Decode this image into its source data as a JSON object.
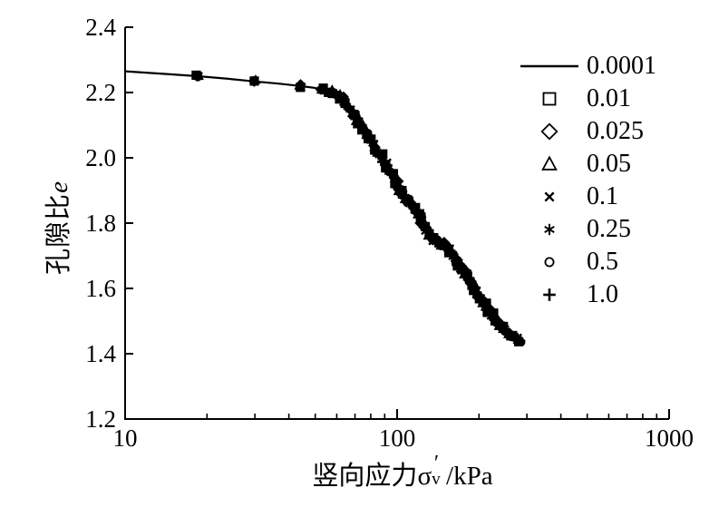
{
  "figure": {
    "background_color": "#ffffff",
    "foreground_color": "#000000"
  },
  "chart_data": {
    "type": "line+scatter",
    "title": "",
    "xlabel_prefix": "竖向应力",
    "xlabel_sigma": "σ",
    "xlabel_prime": "′",
    "xlabel_sub": "v",
    "xlabel_unit": "/kPa",
    "ylabel_cn": "孔隙比",
    "ylabel_var": "e",
    "x_scale": "log",
    "xlim": [
      10,
      1000
    ],
    "ylim": [
      1.2,
      2.4
    ],
    "x_tick_labels": [
      "10",
      "100",
      "1000"
    ],
    "x_tick_values": [
      10,
      100,
      1000
    ],
    "x_minor_ticks": [
      20,
      30,
      40,
      50,
      60,
      70,
      80,
      90,
      200,
      300,
      400,
      500,
      600,
      700,
      800,
      900
    ],
    "y_tick_labels": [
      "2.4",
      "2.2",
      "2.0",
      "1.8",
      "1.6",
      "1.4",
      "1.2"
    ],
    "y_tick_values": [
      2.4,
      2.2,
      2.0,
      1.8,
      1.6,
      1.4,
      1.2
    ],
    "grid": false,
    "legend_position": "upper-right-inside",
    "legend": [
      {
        "label": "0.0001",
        "marker": "line"
      },
      {
        "label": "0.01",
        "marker": "square"
      },
      {
        "label": "0.025",
        "marker": "diamond"
      },
      {
        "label": "0.05",
        "marker": "triangle"
      },
      {
        "label": "0.1",
        "marker": "x"
      },
      {
        "label": "0.25",
        "marker": "asterisk"
      },
      {
        "label": "0.5",
        "marker": "circle"
      },
      {
        "label": "1.0",
        "marker": "plus"
      }
    ],
    "curve_note": "all eight series nearly coincide along this e-logσ'v compression path",
    "curve": [
      [
        10,
        2.265
      ],
      [
        14,
        2.257
      ],
      [
        18.5,
        2.25
      ],
      [
        24,
        2.242
      ],
      [
        30,
        2.234
      ],
      [
        37,
        2.227
      ],
      [
        44,
        2.22
      ],
      [
        49,
        2.215
      ],
      [
        53,
        2.21
      ],
      [
        57,
        2.203
      ],
      [
        60,
        2.193
      ],
      [
        63,
        2.178
      ],
      [
        66,
        2.158
      ],
      [
        70,
        2.128
      ],
      [
        73,
        2.103
      ],
      [
        76,
        2.08
      ],
      [
        80,
        2.055
      ],
      [
        84,
        2.028
      ],
      [
        88,
        2.0
      ],
      [
        92,
        1.972
      ],
      [
        96,
        1.945
      ],
      [
        100,
        1.92
      ],
      [
        104,
        1.895
      ],
      [
        108,
        1.875
      ],
      [
        112,
        1.862
      ],
      [
        116,
        1.848
      ],
      [
        120,
        1.825
      ],
      [
        124,
        1.8
      ],
      [
        128,
        1.778
      ],
      [
        132,
        1.758
      ],
      [
        137,
        1.75
      ],
      [
        144,
        1.742
      ],
      [
        151,
        1.728
      ],
      [
        159,
        1.703
      ],
      [
        169,
        1.672
      ],
      [
        180,
        1.638
      ],
      [
        192,
        1.602
      ],
      [
        205,
        1.565
      ],
      [
        219,
        1.528
      ],
      [
        234,
        1.495
      ],
      [
        250,
        1.468
      ],
      [
        267,
        1.45
      ],
      [
        284,
        1.44
      ]
    ],
    "sparse_cluster_x": [
      18.5,
      30,
      44,
      53
    ],
    "dense_band_x_start": 57
  }
}
